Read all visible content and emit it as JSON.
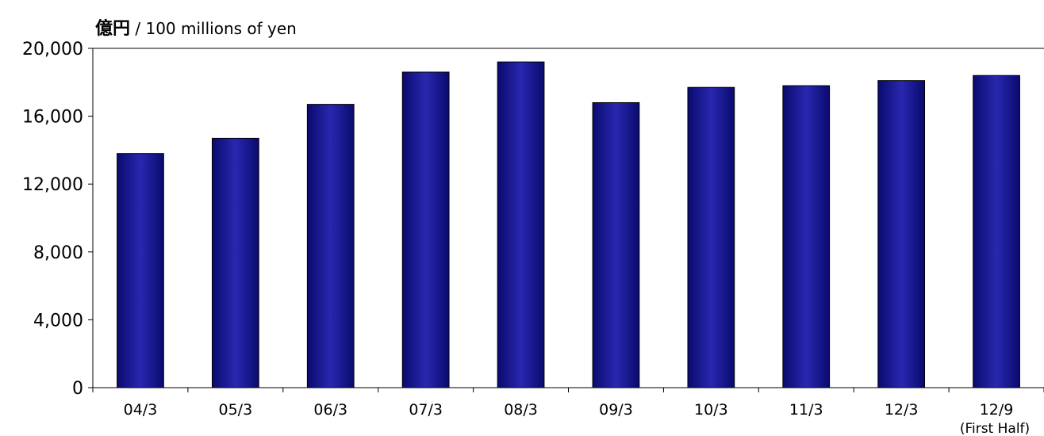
{
  "chart_data": {
    "type": "bar",
    "unit_label_jp": "億円",
    "unit_label_sep": " / ",
    "unit_label_en": "100 millions of yen",
    "categories": [
      "04/3",
      "05/3",
      "06/3",
      "07/3",
      "08/3",
      "09/3",
      "10/3",
      "11/3",
      "12/3",
      "12/9"
    ],
    "category_notes": [
      "",
      "",
      "",
      "",
      "",
      "",
      "",
      "",
      "",
      "(First Half)"
    ],
    "values": [
      13800,
      14700,
      16700,
      18600,
      19200,
      16800,
      17700,
      17800,
      18100,
      18400
    ],
    "ylim": [
      0,
      20000
    ],
    "yticks": [
      0,
      4000,
      8000,
      12000,
      16000,
      20000
    ],
    "ytick_labels": [
      "0",
      "4,000",
      "8,000",
      "12,000",
      "16,000",
      "20,000"
    ],
    "grid": false,
    "bar_color": "#0a0a6e",
    "bar_color_highlight": "#2828b0"
  }
}
